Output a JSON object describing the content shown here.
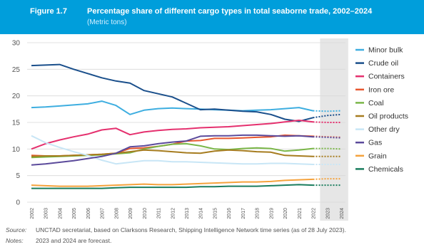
{
  "header": {
    "figure_number": "Figure 1.7",
    "title": "Percentage share of different cargo types in total seaborne trade, 2002–2024",
    "subtitle": "(Metric tons)"
  },
  "footer": {
    "source_label": "Source:",
    "source_text": "UNCTAD secretariat, based on Clarksons Research, Shipping Intelligence Network time series (as of 28 July 2023).",
    "notes_label": "Notes:",
    "notes_text": "2023 and 2024 are forecast."
  },
  "colors": {
    "header_bg": "#009edb",
    "forecast_band": "#e6e6e6",
    "grid": "#d9d9d9"
  },
  "chart_data": {
    "type": "line",
    "x": [
      "2002",
      "2003",
      "2004",
      "2005",
      "2006",
      "2007",
      "2008",
      "2009",
      "2010",
      "2011",
      "2012",
      "2013",
      "2014",
      "2015",
      "2016",
      "2017",
      "2018",
      "2019",
      "2020",
      "2021",
      "2022",
      "2023",
      "2024"
    ],
    "ylim": [
      0,
      30
    ],
    "yticks": [
      0,
      5,
      10,
      15,
      20,
      25,
      30
    ],
    "grid": "horizontal",
    "legend_position": "right",
    "forecast_years": [
      "2023",
      "2024"
    ],
    "series": [
      {
        "name": "Minor bulk",
        "color": "#3eaee0",
        "values": [
          17.8,
          17.9,
          18.1,
          18.3,
          18.5,
          19.0,
          18.2,
          16.5,
          17.3,
          17.6,
          17.7,
          17.6,
          17.5,
          17.4,
          17.3,
          17.2,
          17.3,
          17.4,
          17.6,
          17.8,
          17.2,
          17.1,
          17.2
        ]
      },
      {
        "name": "Crude oil",
        "color": "#1a4f8b",
        "values": [
          25.7,
          25.8,
          25.9,
          25.0,
          24.2,
          23.4,
          22.8,
          22.4,
          21.0,
          20.4,
          19.8,
          18.6,
          17.4,
          17.5,
          17.3,
          17.1,
          17.0,
          16.5,
          15.6,
          15.2,
          15.9,
          16.3,
          16.5
        ]
      },
      {
        "name": "Containers",
        "color": "#e5306e",
        "values": [
          10.0,
          11.0,
          11.7,
          12.3,
          12.8,
          13.6,
          13.9,
          12.7,
          13.2,
          13.5,
          13.7,
          13.8,
          14.0,
          14.1,
          14.2,
          14.4,
          14.6,
          14.8,
          15.1,
          15.4,
          15.1,
          15.0,
          15.0
        ]
      },
      {
        "name": "Iron ore",
        "color": "#e8572f",
        "values": [
          8.8,
          8.7,
          8.7,
          8.8,
          8.9,
          9.0,
          9.2,
          10.1,
          10.2,
          10.5,
          10.9,
          11.5,
          11.6,
          12.0,
          12.0,
          12.1,
          12.2,
          12.3,
          12.6,
          12.5,
          12.4,
          12.3,
          12.2
        ]
      },
      {
        "name": "Coal",
        "color": "#7ab648",
        "values": [
          8.4,
          8.5,
          8.6,
          8.7,
          8.8,
          8.9,
          9.1,
          9.3,
          10.0,
          10.5,
          10.9,
          11.0,
          10.6,
          10.0,
          9.9,
          10.1,
          10.2,
          10.1,
          9.6,
          9.8,
          10.1,
          10.1,
          10.0
        ]
      },
      {
        "name": "Oil products",
        "color": "#a67c1f",
        "values": [
          8.6,
          8.7,
          8.7,
          8.8,
          8.9,
          9.0,
          9.2,
          9.5,
          9.8,
          9.7,
          9.5,
          9.3,
          9.2,
          9.6,
          9.8,
          9.7,
          9.5,
          9.4,
          8.8,
          8.7,
          8.6,
          8.6,
          8.6
        ]
      },
      {
        "name": "Other dry",
        "color": "#c8e6f6",
        "values": [
          12.5,
          11.2,
          10.3,
          9.5,
          8.8,
          7.9,
          7.2,
          7.5,
          7.8,
          7.8,
          7.6,
          7.6,
          7.5,
          7.4,
          7.3,
          7.2,
          7.2,
          7.3,
          7.3,
          7.2,
          7.1,
          7.1,
          7.1
        ]
      },
      {
        "name": "Gas",
        "color": "#5b4a9b",
        "values": [
          7.0,
          7.2,
          7.5,
          7.8,
          8.2,
          8.6,
          9.2,
          10.4,
          10.6,
          11.0,
          11.3,
          11.5,
          12.4,
          12.5,
          12.5,
          12.6,
          12.6,
          12.5,
          12.4,
          12.5,
          12.3,
          12.2,
          12.1
        ]
      },
      {
        "name": "Grain",
        "color": "#f5a23c",
        "values": [
          3.2,
          3.1,
          3.0,
          3.0,
          3.0,
          3.1,
          3.2,
          3.3,
          3.4,
          3.3,
          3.3,
          3.4,
          3.5,
          3.6,
          3.7,
          3.8,
          3.8,
          3.9,
          4.1,
          4.2,
          4.3,
          4.4,
          4.4
        ]
      },
      {
        "name": "Chemicals",
        "color": "#1a7d5e",
        "values": [
          2.6,
          2.6,
          2.6,
          2.6,
          2.6,
          2.6,
          2.7,
          2.8,
          2.8,
          2.8,
          2.8,
          2.8,
          2.9,
          2.9,
          3.0,
          3.0,
          3.0,
          3.1,
          3.2,
          3.3,
          3.2,
          3.2,
          3.2
        ]
      }
    ]
  }
}
